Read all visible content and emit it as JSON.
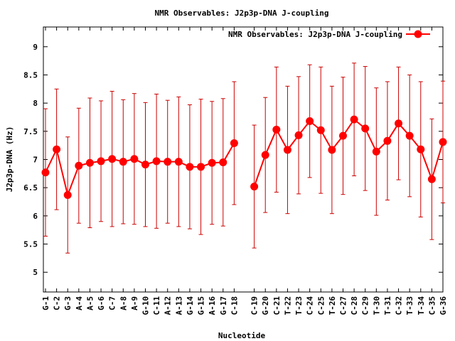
{
  "chart_data": {
    "type": "line",
    "title": "NMR Observables: J2p3p-DNA J-coupling",
    "xlabel": "Nucleotide",
    "ylabel": "J2p3p-DNA (Hz)",
    "ylim": [
      4.65,
      9.35
    ],
    "yticks": [
      "5",
      "5.5",
      "6",
      "6.5",
      "7",
      "7.5",
      "8",
      "8.5",
      "9"
    ],
    "legend": "top-right",
    "series_color": "#ff0000",
    "errorbar_color": "#cc0000",
    "series": [
      {
        "name": "NMR Observables: J2p3p-DNA J-coupling",
        "categories": [
          "G-1",
          "C-2",
          "G-3",
          "A-4",
          "A-5",
          "G-6",
          "C-7",
          "A-8",
          "A-9",
          "G-10",
          "C-11",
          "A-12",
          "A-13",
          "G-14",
          "G-15",
          "A-16",
          "G-17",
          "C-18"
        ],
        "values": [
          6.77,
          7.18,
          6.37,
          6.89,
          6.94,
          6.97,
          7.01,
          6.96,
          7.01,
          6.91,
          6.97,
          6.96,
          6.96,
          6.87,
          6.87,
          6.94,
          6.95,
          7.29
        ],
        "errors": [
          1.13,
          1.07,
          1.03,
          1.02,
          1.15,
          1.07,
          1.2,
          1.1,
          1.16,
          1.1,
          1.19,
          1.09,
          1.15,
          1.1,
          1.2,
          1.09,
          1.13,
          1.09
        ]
      },
      {
        "name": "",
        "categories": [
          "C-19",
          "G-20",
          "C-21",
          "T-22",
          "T-23",
          "C-24",
          "C-25",
          "T-26",
          "C-27",
          "C-28",
          "C-29",
          "T-30",
          "T-31",
          "C-32",
          "T-33",
          "T-34",
          "C-35",
          "G-36"
        ],
        "values": [
          6.52,
          7.08,
          7.53,
          7.17,
          7.43,
          7.68,
          7.52,
          7.17,
          7.42,
          7.71,
          7.55,
          7.14,
          7.33,
          7.64,
          7.42,
          7.18,
          6.65,
          7.31
        ],
        "errors": [
          1.09,
          1.02,
          1.11,
          1.13,
          1.04,
          1.0,
          1.12,
          1.13,
          1.04,
          1.0,
          1.1,
          1.13,
          1.05,
          1.0,
          1.08,
          1.2,
          1.07,
          1.08
        ]
      }
    ]
  }
}
